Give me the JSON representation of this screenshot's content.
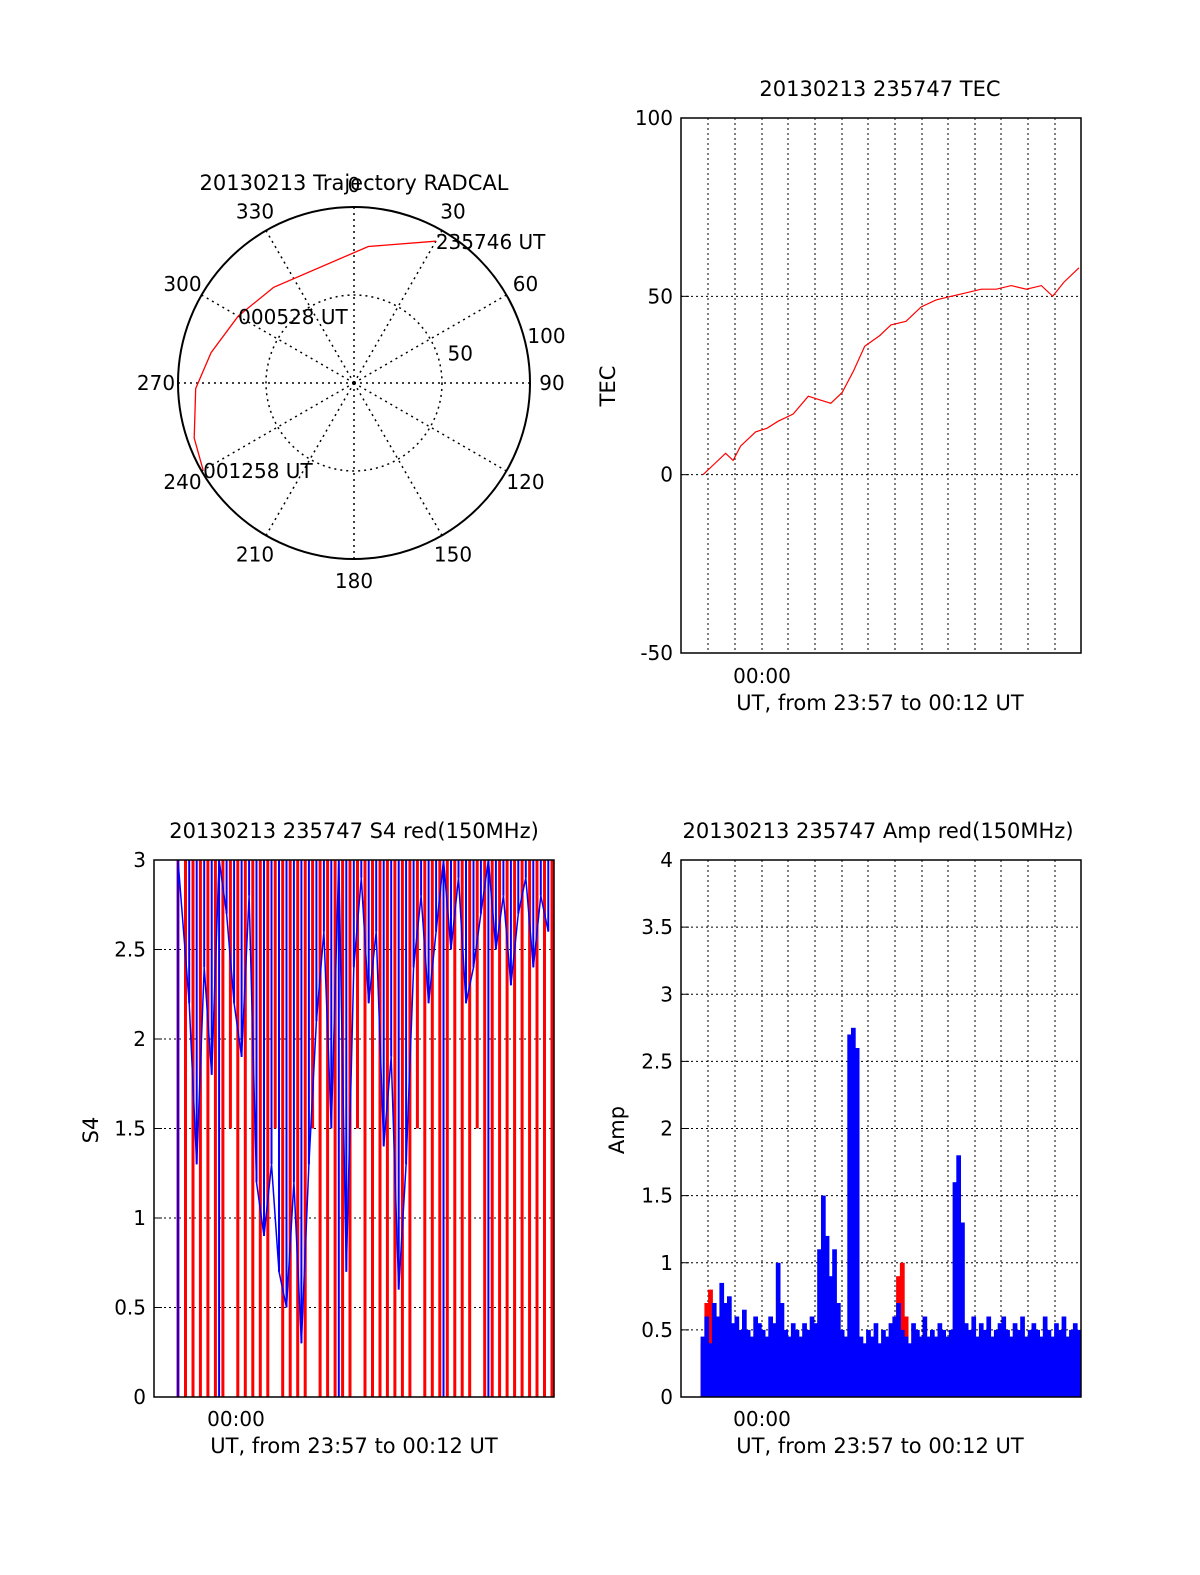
{
  "colors": {
    "primary": "#ff0000",
    "secondary": "#0000ff",
    "axis": "#000000",
    "grid": "#000000"
  },
  "chart_data": [
    {
      "type": "polar",
      "title": "20130213 Trajectory RADCAL",
      "azimuth_labels": [
        "0",
        "30",
        "60",
        "90",
        "120",
        "150",
        "180",
        "210",
        "240",
        "270",
        "300",
        "330"
      ],
      "radial_labels": [
        "50",
        "100"
      ],
      "radial_max": 100,
      "track": [
        [
          0,
          0
        ],
        [
          8,
          13
        ],
        [
          22,
          20
        ],
        [
          45,
          27
        ],
        [
          78,
          34
        ],
        [
          90,
          37
        ],
        [
          125,
          38
        ],
        [
          160,
          38
        ],
        [
          196,
          38
        ],
        [
          235,
          36
        ],
        [
          258,
          31
        ],
        [
          282,
          25
        ],
        [
          323,
          14
        ],
        [
          338,
          9
        ],
        [
          352,
          4
        ],
        [
          360,
          0
        ]
      ],
      "track_polar": {
        "points": [
          {
            "az": 30,
            "r": 93
          },
          {
            "az": 6,
            "r": 78
          },
          {
            "az": 320,
            "r": 71
          },
          {
            "az": 300,
            "r": 76
          },
          {
            "az": 282,
            "r": 83
          },
          {
            "az": 268,
            "r": 90
          },
          {
            "az": 251,
            "r": 96
          },
          {
            "az": 240,
            "r": 99
          }
        ]
      },
      "annotations": [
        {
          "text": "235746 UT",
          "az": 30,
          "r": 93
        },
        {
          "text": "000528 UT",
          "az": 300,
          "r": 76
        },
        {
          "text": "001258 UT",
          "az": 240,
          "r": 99
        }
      ]
    },
    {
      "type": "line",
      "title": "20130213 235747 TEC",
      "xlabel": "UT, from 23:57 to 00:12 UT",
      "ylabel": "TEC",
      "x_tick_labels": [
        "00:00"
      ],
      "ylim": [
        -50,
        100
      ],
      "y_ticks": [
        -50,
        0,
        50,
        100
      ],
      "series": [
        {
          "color": "#ff0000",
          "x": [
            0.0,
            0.03,
            0.06,
            0.08,
            0.1,
            0.14,
            0.17,
            0.2,
            0.24,
            0.28,
            0.31,
            0.34,
            0.37,
            0.4,
            0.43,
            0.47,
            0.5,
            0.54,
            0.58,
            0.62,
            0.66,
            0.7,
            0.74,
            0.78,
            0.82,
            0.86,
            0.9,
            0.93,
            0.96,
            1.0
          ],
          "values": [
            0,
            3,
            6,
            4,
            8,
            12,
            13,
            15,
            17,
            22,
            21,
            20,
            23,
            29,
            36,
            39,
            42,
            43,
            47,
            49,
            50,
            51,
            52,
            52,
            53,
            52,
            53,
            50,
            54,
            58
          ]
        }
      ]
    },
    {
      "type": "line",
      "title": "20130213 235747 S4 red(150MHz)",
      "xlabel": "UT, from 23:57 to 00:12 UT",
      "ylabel": "S4",
      "x_tick_labels": [
        "00:00"
      ],
      "ylim": [
        0,
        3
      ],
      "y_ticks": [
        0,
        0.5,
        1,
        1.5,
        2,
        2.5,
        3
      ],
      "series": [
        {
          "color": "#ff0000",
          "x": [
            0.0,
            0.02,
            0.04,
            0.06,
            0.08,
            0.1,
            0.12,
            0.14,
            0.16,
            0.18,
            0.2,
            0.22,
            0.24,
            0.26,
            0.28,
            0.3,
            0.32,
            0.34,
            0.36,
            0.38,
            0.4,
            0.42,
            0.44,
            0.46,
            0.48,
            0.5,
            0.52,
            0.54,
            0.56,
            0.58,
            0.6,
            0.62,
            0.64,
            0.66,
            0.68,
            0.7,
            0.72,
            0.74,
            0.76,
            0.78,
            0.8,
            0.82,
            0.84,
            0.86,
            0.88,
            0.9,
            0.92,
            0.94,
            0.96,
            0.98,
            1.0
          ],
          "values": [
            3,
            0,
            3,
            0,
            3,
            0,
            3,
            1.5,
            3,
            0,
            3,
            0,
            3,
            1.5,
            3,
            0,
            3,
            0,
            1.5,
            3,
            0,
            3,
            0,
            3,
            1.5,
            3,
            0,
            3,
            0,
            3,
            0,
            3,
            1.5,
            3,
            0,
            3,
            0,
            3,
            0,
            3,
            1.5,
            3,
            0,
            3,
            0,
            3,
            0,
            3,
            0,
            3,
            0
          ]
        },
        {
          "color": "#0000ff",
          "x": [
            0.0,
            0.03,
            0.05,
            0.07,
            0.09,
            0.11,
            0.13,
            0.15,
            0.17,
            0.19,
            0.21,
            0.23,
            0.25,
            0.27,
            0.29,
            0.31,
            0.33,
            0.35,
            0.37,
            0.39,
            0.41,
            0.43,
            0.45,
            0.47,
            0.49,
            0.51,
            0.53,
            0.55,
            0.57,
            0.59,
            0.61,
            0.63,
            0.65,
            0.67,
            0.69,
            0.71,
            0.73,
            0.75,
            0.77,
            0.79,
            0.81,
            0.83,
            0.85,
            0.87,
            0.89,
            0.91,
            0.93,
            0.95,
            0.97,
            0.99
          ],
          "values": [
            3,
            2.2,
            1.3,
            2.4,
            1.8,
            3,
            2.7,
            2.2,
            1.9,
            2.8,
            1.2,
            0.9,
            1.3,
            0.7,
            0.5,
            1.2,
            0.3,
            1.3,
            2.1,
            2.6,
            1.5,
            3,
            0.7,
            2.4,
            2.9,
            2.2,
            2.6,
            1.4,
            1.9,
            0.6,
            1.3,
            2.4,
            2.8,
            2.2,
            2.6,
            3,
            2.5,
            2.9,
            2.2,
            2.4,
            2.7,
            3,
            2.5,
            2.8,
            2.3,
            2.7,
            2.9,
            2.4,
            2.8,
            2.6
          ]
        }
      ]
    },
    {
      "type": "bar",
      "title": "20130213 235747 Amp red(150MHz)",
      "xlabel": "UT, from 23:57 to 00:12 UT",
      "ylabel": "Amp",
      "x_tick_labels": [
        "00:00"
      ],
      "ylim": [
        0,
        4
      ],
      "y_ticks": [
        0,
        0.5,
        1,
        1.5,
        2,
        2.5,
        3,
        3.5,
        4
      ],
      "series": [
        {
          "color": "#ff0000",
          "x": [
            0.0,
            0.01,
            0.02,
            0.03,
            0.39,
            0.4,
            0.41,
            0.52,
            0.53,
            0.54
          ],
          "values": [
            0.4,
            0.7,
            0.8,
            0.5,
            0.1,
            0.15,
            0.1,
            0.9,
            1.0,
            0.6
          ]
        },
        {
          "color": "#0000ff",
          "x": [
            0.0,
            0.01,
            0.02,
            0.03,
            0.04,
            0.05,
            0.06,
            0.07,
            0.08,
            0.09,
            0.1,
            0.11,
            0.12,
            0.13,
            0.14,
            0.15,
            0.16,
            0.17,
            0.18,
            0.19,
            0.2,
            0.21,
            0.22,
            0.23,
            0.24,
            0.25,
            0.26,
            0.27,
            0.28,
            0.29,
            0.3,
            0.31,
            0.32,
            0.33,
            0.34,
            0.35,
            0.36,
            0.37,
            0.38,
            0.39,
            0.4,
            0.41,
            0.42,
            0.43,
            0.44,
            0.45,
            0.46,
            0.47,
            0.48,
            0.49,
            0.5,
            0.51,
            0.52,
            0.53,
            0.54,
            0.55,
            0.56,
            0.57,
            0.58,
            0.59,
            0.6,
            0.61,
            0.62,
            0.63,
            0.64,
            0.65,
            0.66,
            0.67,
            0.68,
            0.69,
            0.7,
            0.71,
            0.72,
            0.73,
            0.74,
            0.75,
            0.76,
            0.77,
            0.78,
            0.79,
            0.8,
            0.81,
            0.82,
            0.83,
            0.84,
            0.85,
            0.86,
            0.87,
            0.88,
            0.89,
            0.9,
            0.91,
            0.92,
            0.93,
            0.94,
            0.95,
            0.96,
            0.97,
            0.98,
            0.99,
            1.0
          ],
          "values": [
            0.45,
            0.6,
            0.4,
            0.7,
            0.6,
            0.85,
            0.7,
            0.75,
            0.55,
            0.6,
            0.5,
            0.65,
            0.5,
            0.45,
            0.6,
            0.55,
            0.5,
            0.45,
            0.6,
            0.55,
            1.0,
            0.7,
            0.5,
            0.45,
            0.55,
            0.5,
            0.45,
            0.55,
            0.5,
            0.6,
            0.55,
            1.1,
            1.5,
            1.2,
            0.9,
            1.1,
            0.7,
            0.5,
            0.45,
            2.7,
            2.75,
            2.6,
            0.45,
            0.4,
            0.5,
            0.45,
            0.55,
            0.4,
            0.5,
            0.45,
            0.55,
            0.6,
            0.7,
            0.5,
            0.45,
            0.4,
            0.55,
            0.5,
            0.45,
            0.6,
            0.45,
            0.5,
            0.45,
            0.55,
            0.5,
            0.45,
            0.5,
            1.6,
            1.8,
            1.3,
            0.55,
            0.5,
            0.6,
            0.45,
            0.55,
            0.5,
            0.6,
            0.45,
            0.5,
            0.55,
            0.6,
            0.5,
            0.45,
            0.55,
            0.5,
            0.6,
            0.45,
            0.5,
            0.55,
            0.5,
            0.45,
            0.6,
            0.5,
            0.45,
            0.55,
            0.5,
            0.6,
            0.45,
            0.5,
            0.55,
            0.5
          ]
        }
      ]
    }
  ]
}
